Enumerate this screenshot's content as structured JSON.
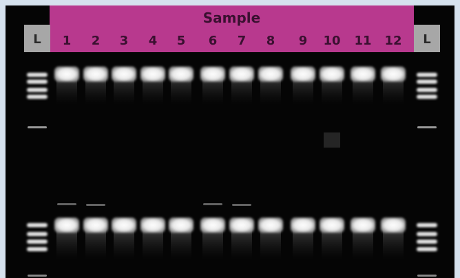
{
  "header": {
    "title": "Sample",
    "lanes": [
      "1",
      "2",
      "3",
      "4",
      "5",
      "6",
      "7",
      "8",
      "9",
      "10",
      "11",
      "12"
    ],
    "ladder_left": "L",
    "ladder_right": "L"
  },
  "colors": {
    "page_background": "#d6e2ee",
    "gel_background": "#050505",
    "header_background": "#b8398e",
    "header_text": "#3a1030",
    "ladder_label_background": "#a7a7a7"
  }
}
